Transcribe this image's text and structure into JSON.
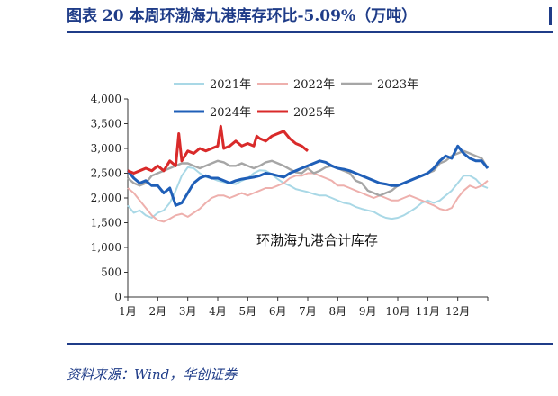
{
  "figure": {
    "title": "图表 20   本周环渤海九港库存环比-5.09%（万吨）",
    "source": "资料来源：Wind，华创证券"
  },
  "chart_data": {
    "type": "line",
    "annotation": "环渤海九港合计库存",
    "ylim": [
      0,
      4000
    ],
    "yticks": [
      "0",
      "500",
      "1,000",
      "1,500",
      "2,000",
      "2,500",
      "3,000",
      "3,500",
      "4,000"
    ],
    "ytick_values": [
      0,
      500,
      1000,
      1500,
      2000,
      2500,
      3000,
      3500,
      4000
    ],
    "xticks": [
      "1月",
      "2月",
      "3月",
      "4月",
      "5月",
      "6月",
      "7月",
      "8月",
      "9月",
      "10月",
      "11月",
      "12月"
    ],
    "xlim": [
      0,
      12
    ],
    "grid": false,
    "legend_position": "top",
    "series": [
      {
        "name": "2021年",
        "color": "#a9d8e6",
        "width": 2,
        "x": [
          0,
          0.2,
          0.4,
          0.6,
          0.8,
          1.0,
          1.2,
          1.4,
          1.6,
          1.8,
          2.0,
          2.2,
          2.4,
          2.6,
          2.8,
          3.0,
          3.2,
          3.4,
          3.6,
          3.8,
          4.0,
          4.2,
          4.4,
          4.6,
          4.8,
          5.0,
          5.2,
          5.4,
          5.6,
          5.8,
          6.0,
          6.2,
          6.4,
          6.6,
          6.8,
          7.0,
          7.2,
          7.4,
          7.6,
          7.8,
          8.0,
          8.2,
          8.4,
          8.6,
          8.8,
          9.0,
          9.2,
          9.4,
          9.6,
          9.8,
          10.0,
          10.2,
          10.4,
          10.6,
          10.8,
          11.0,
          11.2,
          11.4,
          11.6,
          11.8,
          12.0
        ],
        "y": [
          1850,
          1700,
          1750,
          1650,
          1600,
          1700,
          1750,
          1900,
          2150,
          2450,
          2620,
          2600,
          2500,
          2420,
          2400,
          2350,
          2320,
          2300,
          2280,
          2350,
          2400,
          2500,
          2560,
          2550,
          2480,
          2380,
          2300,
          2250,
          2180,
          2150,
          2120,
          2080,
          2050,
          2050,
          2000,
          1950,
          1900,
          1880,
          1820,
          1780,
          1750,
          1720,
          1650,
          1600,
          1580,
          1600,
          1650,
          1720,
          1800,
          1900,
          1950,
          1900,
          1950,
          2050,
          2150,
          2300,
          2450,
          2450,
          2380,
          2250,
          2200
        ]
      },
      {
        "name": "2022年",
        "color": "#eeb0ad",
        "width": 2,
        "x": [
          0,
          0.2,
          0.4,
          0.6,
          0.8,
          1.0,
          1.2,
          1.4,
          1.6,
          1.8,
          2.0,
          2.2,
          2.4,
          2.6,
          2.8,
          3.0,
          3.2,
          3.4,
          3.6,
          3.8,
          4.0,
          4.2,
          4.4,
          4.6,
          4.8,
          5.0,
          5.2,
          5.4,
          5.6,
          5.8,
          6.0,
          6.2,
          6.4,
          6.6,
          6.8,
          7.0,
          7.2,
          7.4,
          7.6,
          7.8,
          8.0,
          8.2,
          8.4,
          8.6,
          8.8,
          9.0,
          9.2,
          9.4,
          9.6,
          9.8,
          10.0,
          10.2,
          10.4,
          10.6,
          10.8,
          11.0,
          11.2,
          11.4,
          11.6,
          11.8,
          12.0
        ],
        "y": [
          2200,
          2100,
          1950,
          1800,
          1650,
          1550,
          1520,
          1580,
          1650,
          1680,
          1620,
          1700,
          1780,
          1900,
          2000,
          2050,
          2050,
          2000,
          2050,
          2100,
          2050,
          2100,
          2150,
          2200,
          2200,
          2250,
          2300,
          2400,
          2450,
          2450,
          2500,
          2500,
          2450,
          2400,
          2350,
          2250,
          2250,
          2200,
          2150,
          2100,
          2050,
          2000,
          2050,
          2000,
          1950,
          1950,
          2000,
          2050,
          2000,
          1950,
          1900,
          1850,
          1780,
          1750,
          1800,
          2000,
          2150,
          2250,
          2200,
          2250,
          2350
        ]
      },
      {
        "name": "2023年",
        "color": "#a6a6a6",
        "width": 2.4,
        "x": [
          0,
          0.2,
          0.4,
          0.6,
          0.8,
          1.0,
          1.2,
          1.4,
          1.6,
          1.8,
          2.0,
          2.2,
          2.4,
          2.6,
          2.8,
          3.0,
          3.2,
          3.4,
          3.6,
          3.8,
          4.0,
          4.2,
          4.4,
          4.6,
          4.8,
          5.0,
          5.2,
          5.4,
          5.6,
          5.8,
          6.0,
          6.2,
          6.4,
          6.6,
          6.8,
          7.0,
          7.2,
          7.4,
          7.6,
          7.8,
          8.0,
          8.2,
          8.4,
          8.6,
          8.8,
          9.0,
          9.2,
          9.4,
          9.6,
          9.8,
          10.0,
          10.2,
          10.4,
          10.6,
          10.8,
          11.0,
          11.2,
          11.4,
          11.6,
          11.8,
          12.0
        ],
        "y": [
          2400,
          2300,
          2250,
          2300,
          2450,
          2500,
          2550,
          2600,
          2650,
          2700,
          2700,
          2650,
          2600,
          2650,
          2700,
          2750,
          2720,
          2650,
          2650,
          2700,
          2650,
          2600,
          2650,
          2720,
          2750,
          2700,
          2650,
          2580,
          2520,
          2500,
          2600,
          2500,
          2550,
          2620,
          2650,
          2600,
          2550,
          2500,
          2350,
          2300,
          2150,
          2100,
          2050,
          2100,
          2150,
          2250,
          2300,
          2350,
          2400,
          2450,
          2500,
          2550,
          2700,
          2750,
          2850,
          2900,
          2950,
          2900,
          2850,
          2800,
          2600
        ]
      },
      {
        "name": "2024年",
        "color": "#1f5fb8",
        "width": 3,
        "x": [
          0,
          0.2,
          0.4,
          0.6,
          0.8,
          1.0,
          1.2,
          1.4,
          1.6,
          1.8,
          2.0,
          2.2,
          2.4,
          2.6,
          2.8,
          3.0,
          3.2,
          3.4,
          3.6,
          3.8,
          4.0,
          4.2,
          4.4,
          4.6,
          4.8,
          5.0,
          5.2,
          5.4,
          5.6,
          5.8,
          6.0,
          6.2,
          6.4,
          6.6,
          6.8,
          7.0,
          7.2,
          7.4,
          7.6,
          7.8,
          8.0,
          8.2,
          8.4,
          8.6,
          8.8,
          9.0,
          9.2,
          9.4,
          9.6,
          9.8,
          10.0,
          10.2,
          10.4,
          10.6,
          10.8,
          11.0,
          11.2,
          11.4,
          11.6,
          11.8,
          12.0
        ],
        "y": [
          2550,
          2400,
          2300,
          2350,
          2250,
          2250,
          2100,
          2200,
          1850,
          1900,
          2100,
          2300,
          2400,
          2450,
          2400,
          2400,
          2350,
          2300,
          2350,
          2380,
          2400,
          2420,
          2450,
          2500,
          2480,
          2450,
          2420,
          2500,
          2550,
          2600,
          2650,
          2700,
          2750,
          2720,
          2650,
          2600,
          2580,
          2550,
          2500,
          2450,
          2400,
          2350,
          2300,
          2280,
          2250,
          2250,
          2300,
          2350,
          2400,
          2450,
          2500,
          2600,
          2750,
          2850,
          2800,
          3050,
          2900,
          2800,
          2750,
          2750,
          2600
        ]
      },
      {
        "name": "2025年",
        "color": "#d92a2a",
        "width": 3,
        "x": [
          0,
          0.2,
          0.4,
          0.6,
          0.8,
          1.0,
          1.2,
          1.4,
          1.6,
          1.7,
          1.8,
          2.0,
          2.2,
          2.4,
          2.6,
          2.8,
          3.0,
          3.1,
          3.2,
          3.4,
          3.6,
          3.8,
          4.0,
          4.2,
          4.3,
          4.4,
          4.6,
          4.8,
          5.0,
          5.2,
          5.4,
          5.6,
          5.8,
          6.0
        ],
        "y": [
          2550,
          2500,
          2550,
          2600,
          2550,
          2650,
          2550,
          2750,
          2650,
          3300,
          2750,
          2950,
          2900,
          3000,
          2950,
          3000,
          3050,
          3450,
          3000,
          3050,
          3150,
          3050,
          3100,
          3050,
          3250,
          3200,
          3150,
          3250,
          3300,
          3350,
          3200,
          3100,
          3050,
          2950
        ]
      }
    ]
  }
}
